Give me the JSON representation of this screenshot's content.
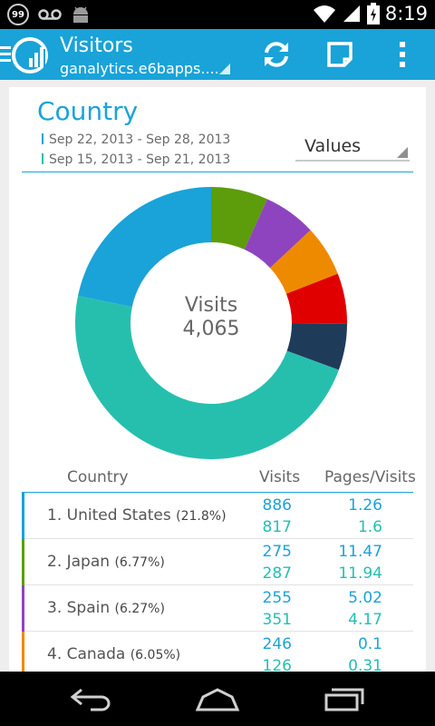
{
  "status_bar": {
    "notification_count": "99",
    "time": "8:19"
  },
  "action_bar": {
    "title": "Visitors",
    "subtitle": "ganalytics.e6bapps....",
    "accent": "#19a3d8"
  },
  "report": {
    "title": "Country",
    "date_range_current": "Sep 22, 2013 - Sep 28, 2013",
    "date_range_previous": "Sep 15, 2013 - Sep 21, 2013",
    "metric_select": "Values",
    "donut_metric": "Visits",
    "donut_total": "4,065"
  },
  "chart_data": {
    "type": "pie",
    "slices": [
      {
        "label": "",
        "value": 21.8,
        "color": "#19a3d8"
      },
      {
        "label": "",
        "value": 6.77,
        "color": "#5d9c0a"
      },
      {
        "label": "",
        "value": 6.27,
        "color": "#8e44bf"
      },
      {
        "label": "",
        "value": 6.05,
        "color": "#ee8a00"
      },
      {
        "label": "",
        "value": 6.0,
        "color": "#e00000"
      },
      {
        "label": "",
        "value": 5.5,
        "color": "#1f3b5a"
      },
      {
        "label": "",
        "value": 47.61,
        "color": "#26bfae"
      }
    ]
  },
  "table": {
    "headers": {
      "country": "Country",
      "visits": "Visits",
      "pages_visits": "Pages/Visits"
    },
    "rows": [
      {
        "name": "1. United States",
        "pct": "(21.8%)",
        "visits_current": "886",
        "visits_previous": "817",
        "pv_current": "1.26",
        "pv_previous": "1.6",
        "color": "#19a3d8"
      },
      {
        "name": "2. Japan",
        "pct": "(6.77%)",
        "visits_current": "275",
        "visits_previous": "287",
        "pv_current": "11.47",
        "pv_previous": "11.94",
        "color": "#5d9c0a"
      },
      {
        "name": "3. Spain",
        "pct": "(6.27%)",
        "visits_current": "255",
        "visits_previous": "351",
        "pv_current": "5.02",
        "pv_previous": "4.17",
        "color": "#8e44bf"
      },
      {
        "name": "4. Canada",
        "pct": "(6.05%)",
        "visits_current": "246",
        "visits_previous": "126",
        "pv_current": "0.1",
        "pv_previous": "0.31",
        "color": "#ee8a00"
      }
    ]
  },
  "nav_bar": {
    "icons": [
      "back-icon",
      "home-icon",
      "recent-apps-icon"
    ]
  }
}
